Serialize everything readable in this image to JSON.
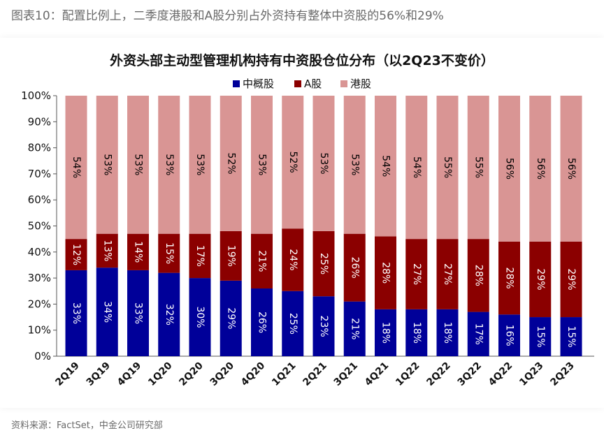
{
  "caption": "图表10：配置比例上，二季度港股和A股分别占外资持有整体中资股的56%和29%",
  "source": "资料来源：FactSet，中金公司研究部",
  "colors": {
    "series_china_adr": "#000099",
    "series_a_share": "#8b0000",
    "series_hk": "#d99594"
  },
  "chart_data": {
    "type": "bar",
    "stacked": true,
    "orientation": "vertical",
    "title": "外资头部主动型管理机构持有中资股仓位分布（以2Q23不变价）",
    "xlabel": "",
    "ylabel": "",
    "ylim": [
      0,
      100
    ],
    "y_tick_format": "percent",
    "y_ticks": [
      "0%",
      "10%",
      "20%",
      "30%",
      "40%",
      "50%",
      "60%",
      "70%",
      "80%",
      "90%",
      "100%"
    ],
    "legend_position": "top-center",
    "grid": false,
    "categories": [
      "2Q19",
      "3Q19",
      "4Q19",
      "1Q20",
      "2Q20",
      "3Q20",
      "4Q20",
      "1Q21",
      "2Q21",
      "3Q21",
      "4Q21",
      "1Q22",
      "2Q22",
      "3Q22",
      "4Q22",
      "1Q23",
      "2Q23"
    ],
    "series": [
      {
        "name": "中概股",
        "color": "#000099",
        "label_color": "#ffffff",
        "values": [
          33,
          34,
          33,
          32,
          30,
          29,
          26,
          25,
          23,
          21,
          18,
          18,
          18,
          17,
          16,
          15,
          15
        ]
      },
      {
        "name": "A股",
        "color": "#8b0000",
        "label_color": "#ffffff",
        "values": [
          12,
          13,
          14,
          15,
          17,
          19,
          21,
          24,
          25,
          26,
          28,
          27,
          27,
          28,
          28,
          29,
          29
        ]
      },
      {
        "name": "港股",
        "color": "#d99594",
        "label_color": "#000000",
        "values": [
          54,
          53,
          53,
          53,
          53,
          52,
          53,
          52,
          53,
          53,
          54,
          54,
          55,
          55,
          56,
          56,
          56
        ]
      }
    ]
  }
}
